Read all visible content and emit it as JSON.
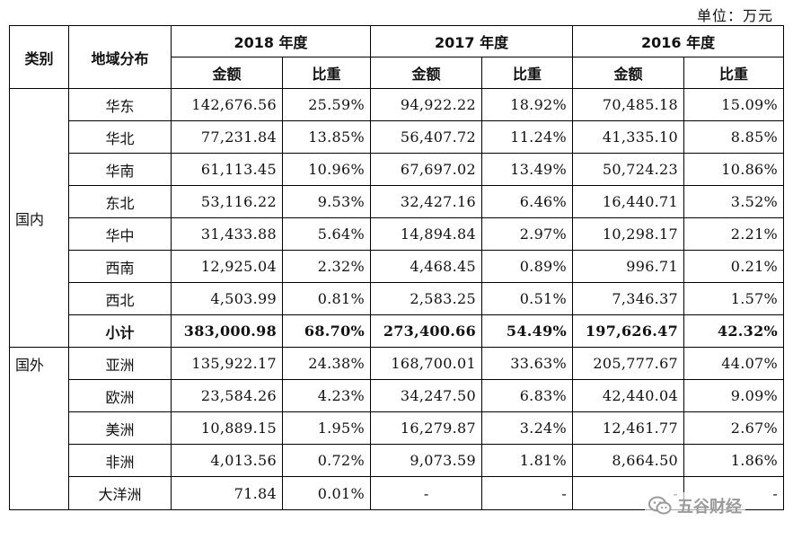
{
  "unit": "单位：万元",
  "header": {
    "category": "类别",
    "region": "地域分布",
    "years": [
      "2018 年度",
      "2017 年度",
      "2016 年度"
    ],
    "amount": "金额",
    "share": "比重"
  },
  "groups": {
    "domestic": "国内",
    "foreign": "国外"
  },
  "rows": [
    {
      "region": "华东",
      "v": [
        "142,676.56",
        "25.59%",
        "94,922.22",
        "18.92%",
        "70,485.18",
        "15.09%"
      ]
    },
    {
      "region": "华北",
      "v": [
        "77,231.84",
        "13.85%",
        "56,407.72",
        "11.24%",
        "41,335.10",
        "8.85%"
      ]
    },
    {
      "region": "华南",
      "v": [
        "61,113.45",
        "10.96%",
        "67,697.02",
        "13.49%",
        "50,724.23",
        "10.86%"
      ]
    },
    {
      "region": "东北",
      "v": [
        "53,116.22",
        "9.53%",
        "32,427.16",
        "6.46%",
        "16,440.71",
        "3.52%"
      ]
    },
    {
      "region": "华中",
      "v": [
        "31,433.88",
        "5.64%",
        "14,894.84",
        "2.97%",
        "10,298.17",
        "2.21%"
      ]
    },
    {
      "region": "西南",
      "v": [
        "12,925.04",
        "2.32%",
        "4,468.45",
        "0.89%",
        "996.71",
        "0.21%"
      ]
    },
    {
      "region": "西北",
      "v": [
        "4,503.99",
        "0.81%",
        "2,583.25",
        "0.51%",
        "7,346.37",
        "1.57%"
      ]
    },
    {
      "region": "小计",
      "v": [
        "383,000.98",
        "68.70%",
        "273,400.66",
        "54.49%",
        "197,626.47",
        "42.32%"
      ]
    },
    {
      "region": "亚洲",
      "v": [
        "135,922.17",
        "24.38%",
        "168,700.01",
        "33.63%",
        "205,777.67",
        "44.07%"
      ]
    },
    {
      "region": "欧洲",
      "v": [
        "23,584.26",
        "4.23%",
        "34,247.50",
        "6.83%",
        "42,440.04",
        "9.09%"
      ]
    },
    {
      "region": "美洲",
      "v": [
        "10,889.15",
        "1.95%",
        "16,279.87",
        "3.24%",
        "12,461.77",
        "2.67%"
      ]
    },
    {
      "region": "非洲",
      "v": [
        "4,013.56",
        "0.72%",
        "9,073.59",
        "1.81%",
        "8,664.50",
        "1.86%"
      ]
    },
    {
      "region": "大洋洲",
      "v": [
        "71.84",
        "0.01%",
        "-",
        "-",
        "-",
        "-"
      ]
    }
  ],
  "watermark": {
    "text": "五谷财经",
    "icon": "wechat-icon"
  }
}
